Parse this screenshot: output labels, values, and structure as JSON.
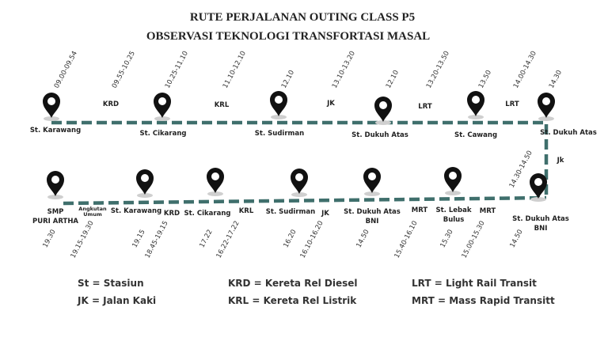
{
  "title": [
    "RUTE PERJALANAN OUTING CLASS P5",
    "OBSERVASI TEKNOLOGI TRANSFORTASI MASAL"
  ],
  "top_row": {
    "stations": [
      {
        "label": [
          "St. Karawang"
        ],
        "time": "09.00-09.54"
      },
      {
        "label": [
          "St. Cikarang"
        ],
        "time": "10.25-11.10"
      },
      {
        "label": [
          "St. Sudirman"
        ],
        "time": "12.10"
      },
      {
        "label": [
          "St. Dukuh Atas"
        ],
        "time": "12.10"
      },
      {
        "label": [
          "St. Cawang"
        ],
        "time": "13.50"
      },
      {
        "label": [
          "St. Dukuh Atas"
        ],
        "time": "14.30"
      }
    ],
    "modes": [
      {
        "label": [
          "KRD"
        ],
        "time": "09.55-10.25"
      },
      {
        "label": [
          "KRL"
        ],
        "time": "11.10-12.10"
      },
      {
        "label": [
          "JK"
        ],
        "time": "13.10-13.20"
      },
      {
        "label": [
          "LRT"
        ],
        "time": "13.20-13.50"
      },
      {
        "label": [
          "LRT"
        ],
        "time": "14.00-14.30"
      }
    ]
  },
  "right_connector": {
    "label": [
      "Jk"
    ],
    "time": "14.30-14.50"
  },
  "bottom_row": {
    "stations": [
      {
        "label": [
          "SMP",
          "PURI ARTHA"
        ],
        "time": "19.30"
      },
      {
        "label": [
          "St. Karawang"
        ],
        "time": "19.15"
      },
      {
        "label": [
          "St. Cikarang"
        ],
        "time": "17.22"
      },
      {
        "label": [
          "St. Sudirman"
        ],
        "time": "16.20"
      },
      {
        "label": [
          "St. Dukuh Atas",
          "BNI"
        ],
        "time": "14.50"
      },
      {
        "label": [
          "St. Lebak",
          "Bulus"
        ],
        "time": "15.30"
      },
      {
        "label": [
          "St. Dukuh Atas",
          "BNI"
        ],
        "time": "14.50"
      }
    ],
    "modes": [
      {
        "label": [
          "Angkutan",
          "Umum"
        ],
        "time": "19.15-19.30"
      },
      {
        "label": [
          "KRD"
        ],
        "time": "18.45-19.15"
      },
      {
        "label": [
          "KRL"
        ],
        "time": "16.22-17.22"
      },
      {
        "label": [
          "JK"
        ],
        "time": "16.10-16.20"
      },
      {
        "label": [
          "MRT"
        ],
        "time": "15.40-16.10"
      },
      {
        "label": [
          "MRT"
        ],
        "time": "15.00-15.30"
      }
    ]
  },
  "legend": [
    [
      "St = Stasiun",
      "JK =  Jalan Kaki"
    ],
    [
      "KRD = Kereta Rel Diesel",
      "KRL = Kereta Rel Listrik"
    ],
    [
      "LRT = Light Rail Transit",
      "MRT = Mass Rapid Transitt"
    ]
  ]
}
